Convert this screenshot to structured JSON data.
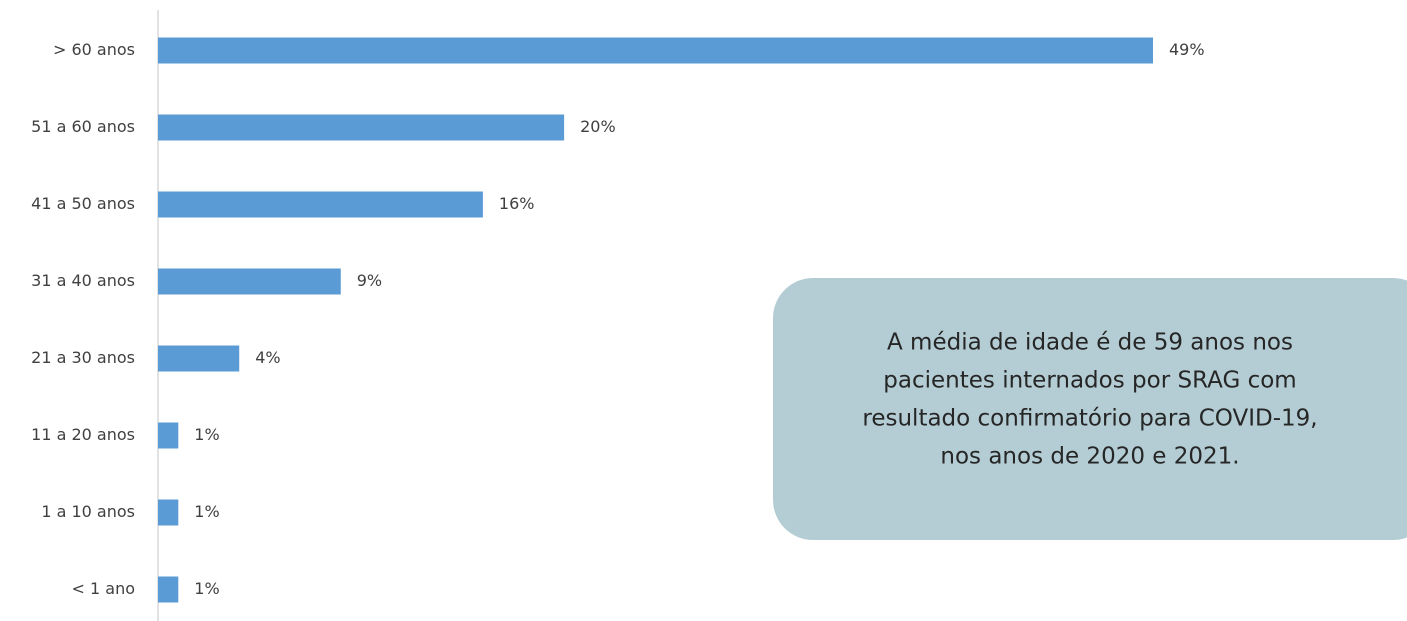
{
  "chart_data": {
    "type": "bar",
    "orientation": "horizontal",
    "categories": [
      "> 60 anos",
      "51 a 60 anos",
      "41 a 50 anos",
      "31 a 40 anos",
      "21 a 30 anos",
      "11 a 20 anos",
      "1 a 10 anos",
      "< 1 ano"
    ],
    "values": [
      49,
      20,
      16,
      9,
      4,
      1,
      1,
      1
    ],
    "value_labels": [
      "49%",
      "20%",
      "16%",
      "9%",
      "4%",
      "1%",
      "1%",
      "1%"
    ],
    "color": "#5b9bd5",
    "annotation": [
      "A média de idade é de 59 anos nos",
      "pacientes internados por SRAG com",
      "resultado confirmatório para COVID-19,",
      "nos anos de 2020 e 2021."
    ]
  }
}
